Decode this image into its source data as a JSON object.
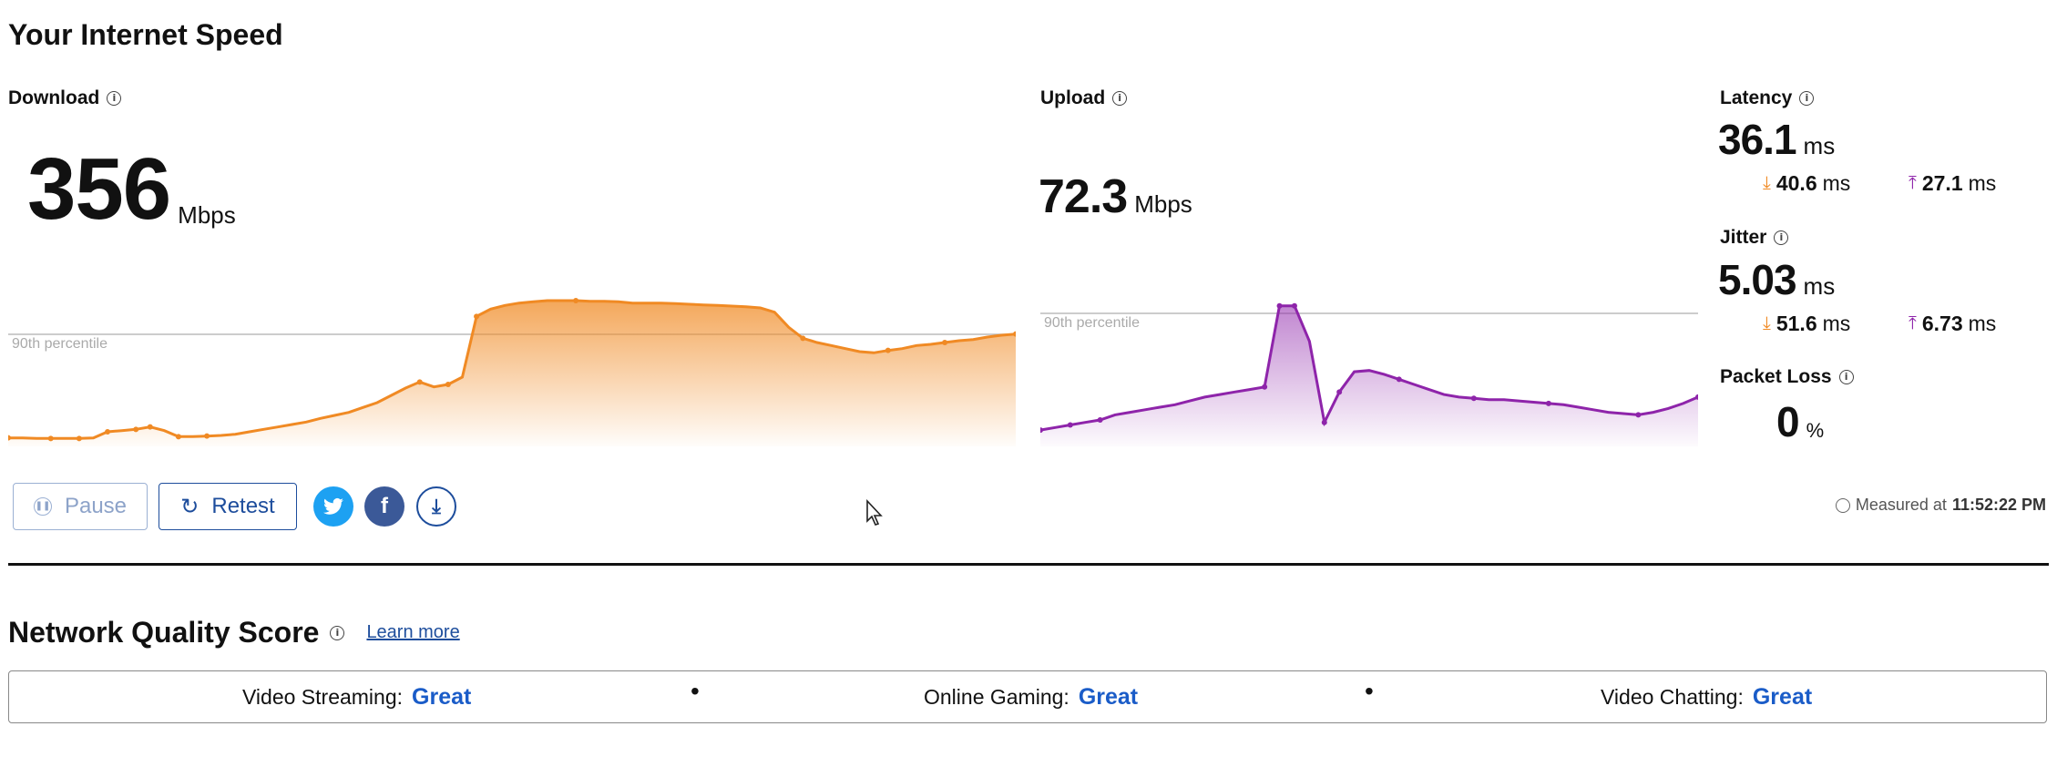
{
  "page_title": "Your Internet Speed",
  "download": {
    "label": "Download",
    "value": "356",
    "unit": "Mbps",
    "percentile_label": "90th percentile",
    "color": "#f08a24"
  },
  "upload": {
    "label": "Upload",
    "value": "72.3",
    "unit": "Mbps",
    "percentile_label": "90th percentile",
    "color": "#8e24aa"
  },
  "latency": {
    "label": "Latency",
    "value": "36.1",
    "unit": "ms",
    "down_value": "40.6",
    "up_value": "27.1",
    "sub_unit": "ms"
  },
  "jitter": {
    "label": "Jitter",
    "value": "5.03",
    "unit": "ms",
    "down_value": "51.6",
    "up_value": "6.73",
    "sub_unit": "ms"
  },
  "packet_loss": {
    "label": "Packet Loss",
    "value": "0",
    "unit": "%"
  },
  "controls": {
    "pause_label": "Pause",
    "retest_label": "Retest"
  },
  "measured": {
    "prefix": "Measured at",
    "time": "11:52:22 PM"
  },
  "nqs": {
    "title": "Network Quality Score",
    "learn_more": "Learn more",
    "items": [
      {
        "label": "Video Streaming:",
        "value": "Great"
      },
      {
        "label": "Online Gaming:",
        "value": "Great"
      },
      {
        "label": "Video Chatting:",
        "value": "Great"
      }
    ],
    "separator": "•"
  },
  "chart_data": [
    {
      "type": "area",
      "title": "",
      "series": [
        {
          "values": [
            8,
            8,
            7,
            7,
            7,
            7,
            8,
            18,
            20,
            22,
            26,
            20,
            10,
            10,
            11,
            12,
            14,
            18,
            22,
            26,
            30,
            34,
            40,
            45,
            50,
            58,
            66,
            78,
            90,
            100,
            92,
            96,
            108,
            208,
            220,
            226,
            230,
            232,
            234,
            234,
            234,
            233,
            233,
            232,
            230,
            230,
            230,
            229,
            228,
            227,
            226,
            225,
            224,
            222,
            215,
            190,
            172,
            165,
            160,
            155,
            150,
            148,
            152,
            155,
            160,
            162,
            165,
            168,
            170,
            174,
            177,
            179
          ]
        }
      ]
    },
    {
      "type": "area",
      "title": "",
      "series": [
        {
          "values": [
            10,
            12,
            14,
            16,
            18,
            22,
            24,
            26,
            28,
            30,
            33,
            36,
            38,
            40,
            42,
            44,
            108,
            108,
            80,
            16,
            40,
            56,
            57,
            54,
            50,
            46,
            42,
            38,
            36,
            35,
            34,
            34,
            33,
            32,
            31,
            30,
            28,
            26,
            24,
            23,
            22,
            24,
            27,
            31,
            36
          ]
        }
      ]
    }
  ]
}
